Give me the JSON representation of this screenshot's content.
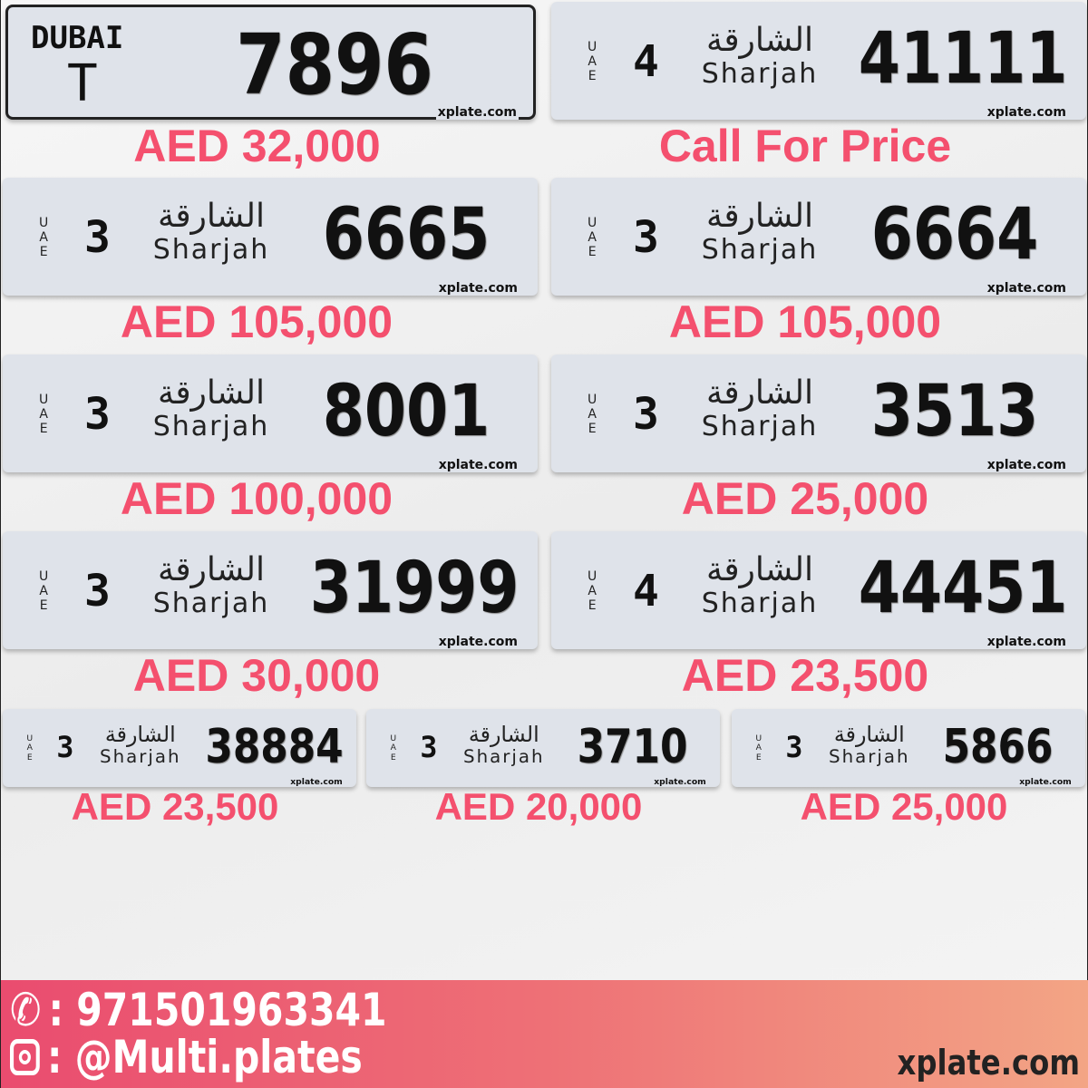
{
  "watermark": "xplate.com",
  "uae_letters": [
    "U",
    "A",
    "E"
  ],
  "emirate": {
    "arabic": "الشارقة",
    "english": "Sharjah"
  },
  "dubai_plate": {
    "emirate": "DUBAI",
    "code": "T",
    "number": "7896",
    "price": "AED 32,000"
  },
  "plates": [
    {
      "code": "4",
      "number": "41111",
      "price": "Call For Price"
    },
    {
      "code": "3",
      "number": "6665",
      "price": "AED 105,000"
    },
    {
      "code": "3",
      "number": "6664",
      "price": "AED 105,000"
    },
    {
      "code": "3",
      "number": "8001",
      "price": "AED 100,000"
    },
    {
      "code": "3",
      "number": "3513",
      "price": "AED 25,000"
    },
    {
      "code": "3",
      "number": "31999",
      "price": "AED 30,000"
    },
    {
      "code": "4",
      "number": "44451",
      "price": "AED 23,500"
    },
    {
      "code": "3",
      "number": "38884",
      "price": "AED 23,500"
    },
    {
      "code": "3",
      "number": "3710",
      "price": "AED 20,000"
    },
    {
      "code": "3",
      "number": "5866",
      "price": "AED 25,000"
    }
  ],
  "footer": {
    "phone": ": 971501963341",
    "instagram": ": @Multi.plates",
    "site": "xplate.com",
    "accent": "#f4506e"
  }
}
